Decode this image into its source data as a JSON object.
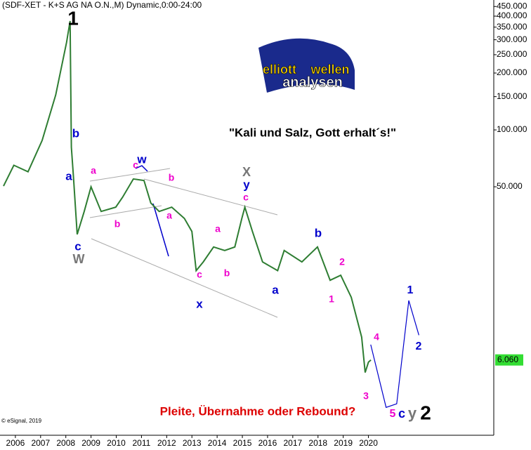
{
  "chart_data": {
    "type": "line",
    "title": "(SDF-XET - K+S AG NA O.N.,M) Dynamic,0:00-24:00",
    "quote": "\"Kali und Salz, Gott erhalt´s!\"",
    "question": "Pleite, Übernahme oder Rebound?",
    "copyright": "© eSignal, 2019",
    "logo": [
      "elliott",
      "wellen",
      "analysen"
    ],
    "log_scale": true,
    "color": "#2e7d32",
    "x": [
      2005.53,
      2005.94,
      2006.5,
      2007.06,
      2007.6,
      2008.03,
      2008.17,
      2008.22,
      2008.3,
      2008.45,
      2008.73,
      2009.0,
      2009.4,
      2009.98,
      2010.25,
      2010.68,
      2011.1,
      2011.37,
      2011.7,
      2012.2,
      2012.7,
      2013.0,
      2013.17,
      2013.45,
      2013.86,
      2014.3,
      2014.7,
      2014.98,
      2015.1,
      2015.4,
      2015.8,
      2016.4,
      2016.66,
      2017.36,
      2017.98,
      2018.48,
      2018.9,
      2019.32,
      2019.73,
      2019.87,
      2020.0,
      2020.1
    ],
    "values": [
      50.4,
      65,
      60,
      88,
      153,
      291,
      377,
      81,
      57,
      28,
      37,
      50,
      37,
      39,
      44,
      55,
      54,
      41,
      37,
      39,
      34,
      29,
      18,
      20,
      24,
      23,
      24,
      34,
      39,
      29,
      20,
      18,
      23,
      20,
      24,
      16,
      17,
      13,
      8,
      5.2,
      5.9,
      6.06
    ],
    "projection_color": "#0000cc",
    "projection_x": [
      2020.09,
      2020.7,
      2021.12,
      2021.6,
      2022.0
    ],
    "projection_values": [
      7.3,
      3.4,
      3.55,
      12.5,
      8.2
    ],
    "last_value": {
      "value": 6.06,
      "label": "6.060"
    },
    "xlim": [
      2005.39,
      2024.97
    ],
    "ylim": [
      2.42,
      487
    ],
    "xticks": [
      2006,
      2007,
      2008,
      2009,
      2010,
      2011,
      2012,
      2013,
      2014,
      2015,
      2016,
      2017,
      2018,
      2019,
      2020
    ],
    "yticks": [
      {
        "value": 450,
        "label": "450.000"
      },
      {
        "value": 400,
        "label": "400.000"
      },
      {
        "value": 350,
        "label": "350.000"
      },
      {
        "value": 300,
        "label": "300.000"
      },
      {
        "value": 250,
        "label": "250.000"
      },
      {
        "value": 200,
        "label": "200.000"
      },
      {
        "value": 150,
        "label": "150.000"
      },
      {
        "value": 100,
        "label": "100.000"
      },
      {
        "value": 50,
        "label": "50.000"
      }
    ],
    "wave_labels": [
      "1",
      "b",
      "a",
      "c",
      "W",
      "a",
      "b",
      "c",
      "w",
      "b",
      "a",
      "c",
      "x",
      "a",
      "b",
      "X",
      "y",
      "c",
      "b",
      "a",
      "2",
      "1",
      "4",
      "3",
      "1",
      "2",
      "5",
      "c",
      "y",
      "2"
    ]
  }
}
